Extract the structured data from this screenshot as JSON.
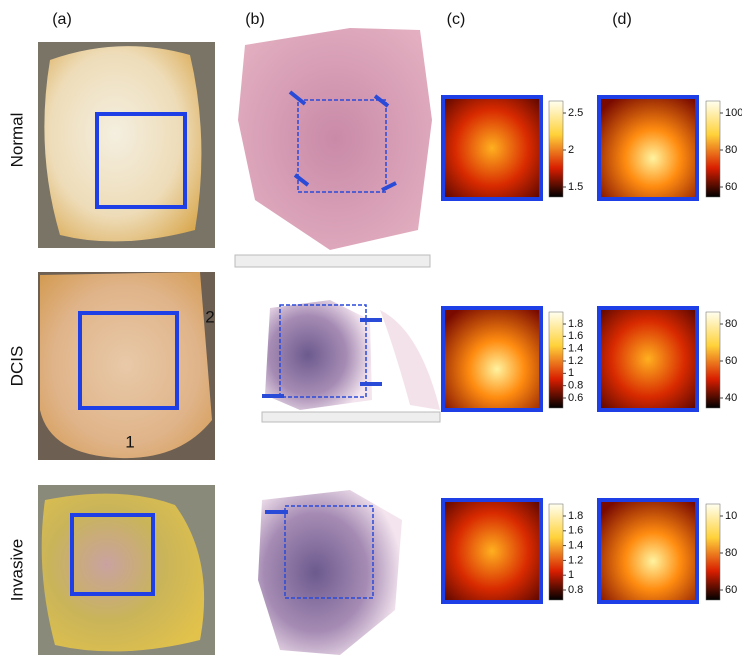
{
  "columns": [
    "(a)",
    "(b)",
    "(c)",
    "(d)"
  ],
  "rows": [
    {
      "label": "Normal",
      "c_ticks": [
        "2.5",
        "2",
        "1.5"
      ],
      "d_ticks": [
        "100",
        "80",
        "60"
      ]
    },
    {
      "label": "DCIS",
      "annotations": [
        "1",
        "2"
      ],
      "c_ticks": [
        "1.8",
        "1.6",
        "1.4",
        "1.2",
        "1",
        "0.8",
        "0.6"
      ],
      "d_ticks": [
        "80",
        "60",
        "40"
      ]
    },
    {
      "label": "Invasive",
      "c_ticks": [
        "1.8",
        "1.6",
        "1.4",
        "1.2",
        "1",
        "0.8"
      ],
      "d_ticks": [
        "10",
        "80",
        "60"
      ]
    }
  ]
}
